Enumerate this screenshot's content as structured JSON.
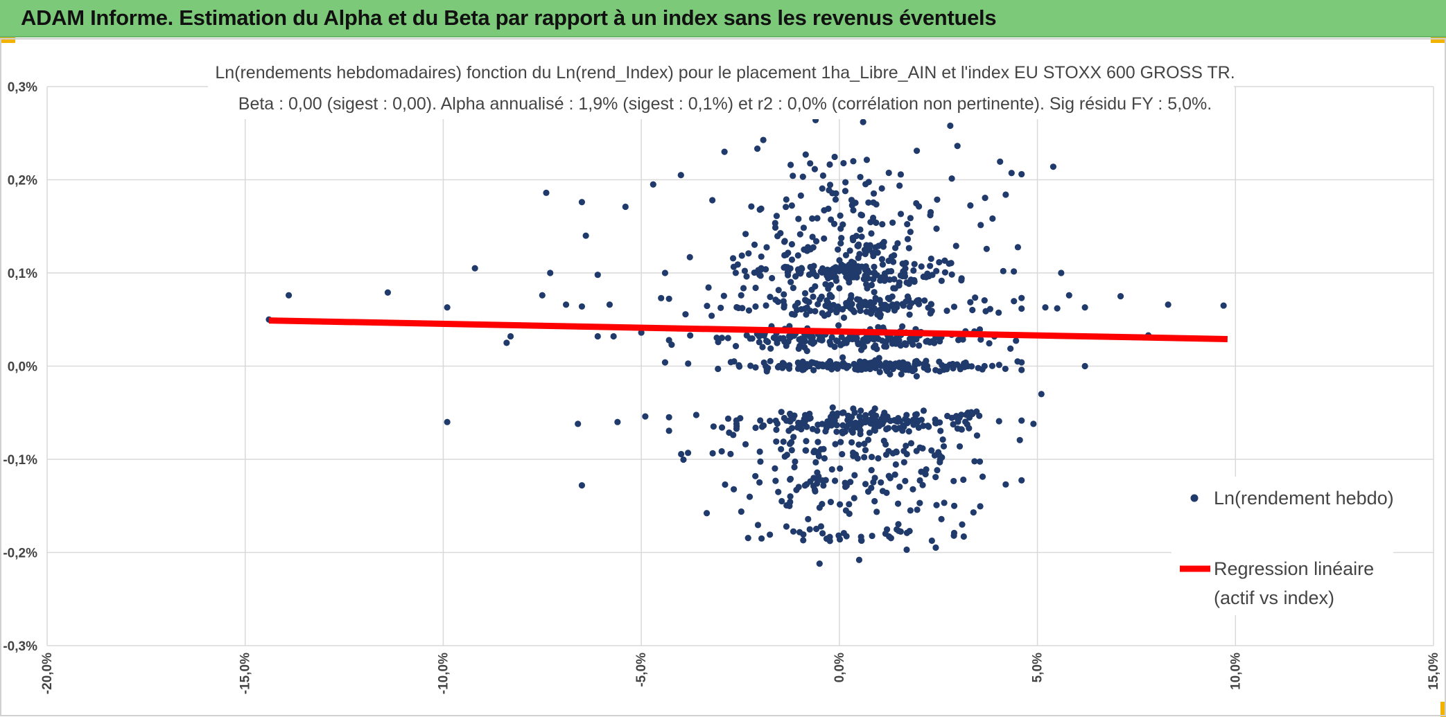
{
  "header": {
    "title": "ADAM Informe. Estimation du Alpha et du Beta par rapport à un index sans les revenus éventuels"
  },
  "colors": {
    "banner": "#7dc97a",
    "points": "#1f3a6b",
    "regression": "#ff0000",
    "grid": "#d9d9d9"
  },
  "chart_data": {
    "type": "scatter",
    "title_lines": [
      "Ln(rendements hebdomadaires) fonction du Ln(rend_Index) pour le placement 1ha_Libre_AIN et l'index EU STOXX 600 GROSS TR.",
      "Beta : 0,00 (sigest : 0,00). Alpha annualisé : 1,9% (sigest : 0,1%) et r2 : 0,0% (corrélation non pertinente). Sig résidu FY : 5,0%."
    ],
    "xlabel": "",
    "ylabel": "",
    "xlim": [
      -0.2,
      0.15
    ],
    "ylim": [
      -0.003,
      0.003
    ],
    "x_ticks": [
      -0.2,
      -0.15,
      -0.1,
      -0.05,
      0.0,
      0.05,
      0.1,
      0.15
    ],
    "x_tick_labels": [
      "-20,0%",
      "-15,0%",
      "-10,0%",
      "-5,0%",
      "0,0%",
      "5,0%",
      "10,0%",
      "15,0%"
    ],
    "y_ticks": [
      0.003,
      0.002,
      0.001,
      0.0,
      -0.001,
      -0.002,
      -0.003
    ],
    "y_tick_labels": [
      "0,3%",
      "0,2%",
      "0,1%",
      "0,0%",
      "-0,1%",
      "-0,2%",
      "-0,3%"
    ],
    "grid": true,
    "legend_position": "right",
    "legend": [
      {
        "label": "Ln(rendement hebdo)",
        "kind": "marker"
      },
      {
        "label": "Regression linéaire",
        "label2": "(actif vs index)",
        "kind": "line"
      }
    ],
    "regression": {
      "x": [
        -0.144,
        0.098
      ],
      "y": [
        0.00049,
        0.00029
      ]
    },
    "outliers": [
      [
        -0.144,
        0.0005
      ],
      [
        -0.139,
        0.00076
      ],
      [
        -0.114,
        0.00079
      ],
      [
        -0.099,
        0.00063
      ],
      [
        -0.092,
        0.00105
      ],
      [
        -0.099,
        -0.0006
      ],
      [
        -0.083,
        0.00032
      ],
      [
        -0.084,
        0.00025
      ],
      [
        -0.074,
        0.00186
      ],
      [
        -0.073,
        0.001
      ],
      [
        -0.075,
        0.00076
      ],
      [
        -0.069,
        0.00066
      ],
      [
        -0.065,
        0.00176
      ],
      [
        -0.064,
        0.0014
      ],
      [
        -0.061,
        0.00098
      ],
      [
        -0.065,
        0.00064
      ],
      [
        -0.061,
        0.00032
      ],
      [
        -0.066,
        -0.00062
      ],
      [
        -0.065,
        -0.00128
      ],
      [
        -0.058,
        0.00066
      ],
      [
        -0.057,
        0.00032
      ],
      [
        -0.054,
        0.00171
      ],
      [
        -0.056,
        -0.0006
      ],
      [
        -0.05,
        0.00036
      ],
      [
        -0.049,
        -0.00054
      ],
      [
        -0.047,
        0.00195
      ],
      [
        -0.044,
        0.001
      ],
      [
        -0.045,
        0.00073
      ],
      [
        -0.044,
        4e-05
      ],
      [
        0.054,
        0.00214
      ],
      [
        0.056,
        0.001
      ],
      [
        0.058,
        0.00076
      ],
      [
        0.062,
        0.00063
      ],
      [
        0.071,
        0.00075
      ],
      [
        0.078,
        0.00033
      ],
      [
        0.083,
        0.00066
      ],
      [
        0.097,
        0.00065
      ],
      [
        0.049,
        -0.00062
      ],
      [
        0.051,
        -0.0003
      ],
      [
        0.062,
        0.0
      ],
      [
        0.052,
        0.00063
      ],
      [
        0.042,
        -0.00127
      ],
      [
        0.042,
        0.00184
      ],
      [
        -0.029,
        0.0023
      ],
      [
        -0.04,
        0.00205
      ],
      [
        0.031,
        -0.0017
      ],
      [
        0.029,
        -0.0015
      ],
      [
        0.017,
        -0.00197
      ],
      [
        -0.005,
        -0.00212
      ],
      [
        0.005,
        -0.00208
      ],
      [
        -0.006,
        0.00264
      ],
      [
        0.006,
        0.00262
      ],
      [
        0.028,
        0.00258
      ],
      [
        0.055,
        0.00062
      ],
      [
        0.045,
        5e-05
      ]
    ],
    "cloud": {
      "x_mean": 0.0045,
      "x_sd": 0.016,
      "x_range": [
        -0.043,
        0.046
      ],
      "levels": [
        {
          "y": 0.0,
          "n": 175,
          "jitter": 3e-05
        },
        {
          "y": 0.0003,
          "n": 210,
          "jitter": 5e-05
        },
        {
          "y": 0.00065,
          "n": 150,
          "jitter": 6e-05
        },
        {
          "y": 0.001,
          "n": 170,
          "jitter": 8e-05
        },
        {
          "y": 0.0013,
          "n": 60,
          "jitter": 9e-05
        },
        {
          "y": 0.0016,
          "n": 50,
          "jitter": 0.00012
        },
        {
          "y": 0.002,
          "n": 40,
          "jitter": 0.0002
        },
        {
          "y": -0.0006,
          "n": 200,
          "jitter": 6e-05
        },
        {
          "y": -0.0009,
          "n": 80,
          "jitter": 8e-05
        },
        {
          "y": -0.00125,
          "n": 60,
          "jitter": 8e-05
        },
        {
          "y": -0.0015,
          "n": 25,
          "jitter": 7e-05
        },
        {
          "y": -0.0018,
          "n": 40,
          "jitter": 6e-05
        }
      ]
    }
  }
}
